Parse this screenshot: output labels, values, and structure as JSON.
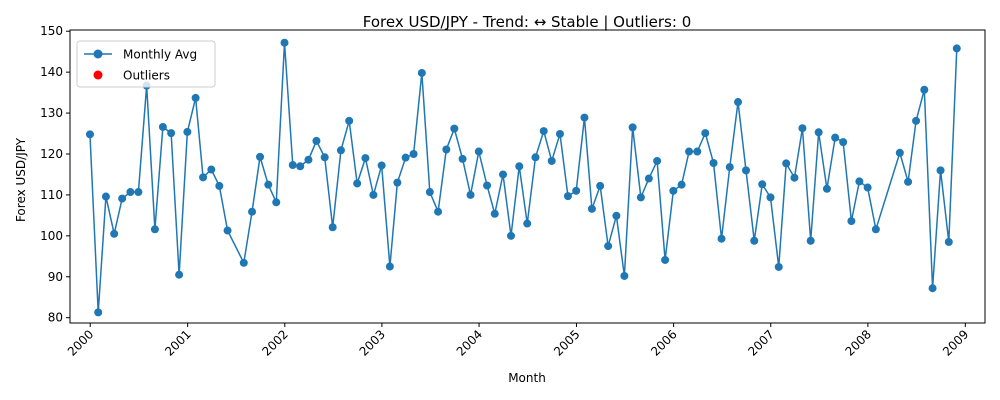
{
  "chart_data": {
    "type": "line",
    "title": "Forex USD/JPY - Trend: ↔ Stable | Outliers: 0",
    "xlabel": "Month",
    "ylabel": "Forex USD/JPY",
    "ylim": [
      78.7,
      150.3
    ],
    "xlim": [
      "1999-10-17",
      "2009-03-16"
    ],
    "yticks": [
      80,
      90,
      100,
      110,
      120,
      130,
      140,
      150
    ],
    "xticks": [
      {
        "label": "2000",
        "date": "2000-01-01"
      },
      {
        "label": "2001",
        "date": "2001-01-01"
      },
      {
        "label": "2002",
        "date": "2002-01-01"
      },
      {
        "label": "2003",
        "date": "2003-01-01"
      },
      {
        "label": "2004",
        "date": "2004-01-01"
      },
      {
        "label": "2005",
        "date": "2005-01-01"
      },
      {
        "label": "2006",
        "date": "2006-01-01"
      },
      {
        "label": "2007",
        "date": "2007-01-01"
      },
      {
        "label": "2008",
        "date": "2008-01-01"
      },
      {
        "label": "2009",
        "date": "2009-01-01"
      }
    ],
    "grid": false,
    "legend_placement": "top-left",
    "series": [
      {
        "name": "Monthly Avg",
        "color": "#1f77b4",
        "style": "line-marker",
        "points": [
          [
            "1999-12-31",
            124.8
          ],
          [
            "2000-01-31",
            81.3
          ],
          [
            "2000-02-29",
            109.6
          ],
          [
            "2000-03-31",
            100.5
          ],
          [
            "2000-04-30",
            109.1
          ],
          [
            "2000-05-31",
            110.7
          ],
          [
            "2000-06-30",
            110.7
          ],
          [
            "2000-07-31",
            136.7
          ],
          [
            "2000-08-31",
            101.6
          ],
          [
            "2000-09-30",
            126.6
          ],
          [
            "2000-10-31",
            125.1
          ],
          [
            "2000-11-30",
            90.5
          ],
          [
            "2000-12-31",
            125.4
          ],
          [
            "2001-01-31",
            133.7
          ],
          [
            "2001-02-28",
            114.3
          ],
          [
            "2001-03-31",
            116.2
          ],
          [
            "2001-04-30",
            112.2
          ],
          [
            "2001-05-31",
            101.3
          ],
          [
            "2001-07-31",
            93.4
          ],
          [
            "2001-08-31",
            105.9
          ],
          [
            "2001-09-30",
            119.3
          ],
          [
            "2001-10-31",
            112.5
          ],
          [
            "2001-11-30",
            108.2
          ],
          [
            "2001-12-31",
            147.2
          ],
          [
            "2002-01-31",
            117.3
          ],
          [
            "2002-02-28",
            117.0
          ],
          [
            "2002-03-31",
            118.6
          ],
          [
            "2002-04-30",
            123.2
          ],
          [
            "2002-05-31",
            119.2
          ],
          [
            "2002-06-30",
            102.1
          ],
          [
            "2002-07-31",
            120.9
          ],
          [
            "2002-08-31",
            128.1
          ],
          [
            "2002-09-30",
            112.8
          ],
          [
            "2002-10-31",
            119.0
          ],
          [
            "2002-11-30",
            110.0
          ],
          [
            "2002-12-31",
            117.2
          ],
          [
            "2003-01-31",
            92.5
          ],
          [
            "2003-02-28",
            113.0
          ],
          [
            "2003-03-31",
            119.1
          ],
          [
            "2003-04-30",
            120.0
          ],
          [
            "2003-05-31",
            139.8
          ],
          [
            "2003-06-30",
            110.7
          ],
          [
            "2003-07-31",
            105.9
          ],
          [
            "2003-08-31",
            121.1
          ],
          [
            "2003-09-30",
            126.2
          ],
          [
            "2003-10-31",
            118.8
          ],
          [
            "2003-11-30",
            110.0
          ],
          [
            "2003-12-31",
            120.6
          ],
          [
            "2004-01-31",
            112.3
          ],
          [
            "2004-02-29",
            105.4
          ],
          [
            "2004-03-31",
            115.0
          ],
          [
            "2004-04-30",
            100.0
          ],
          [
            "2004-05-31",
            117.0
          ],
          [
            "2004-06-30",
            103.0
          ],
          [
            "2004-07-31",
            119.2
          ],
          [
            "2004-08-31",
            125.6
          ],
          [
            "2004-09-30",
            118.3
          ],
          [
            "2004-10-31",
            124.9
          ],
          [
            "2004-11-30",
            109.7
          ],
          [
            "2004-12-31",
            111.0
          ],
          [
            "2005-01-31",
            128.9
          ],
          [
            "2005-02-28",
            106.6
          ],
          [
            "2005-03-31",
            112.2
          ],
          [
            "2005-04-30",
            97.5
          ],
          [
            "2005-05-31",
            104.9
          ],
          [
            "2005-06-30",
            90.2
          ],
          [
            "2005-07-31",
            126.5
          ],
          [
            "2005-08-31",
            109.4
          ],
          [
            "2005-09-30",
            114.0
          ],
          [
            "2005-10-31",
            118.3
          ],
          [
            "2005-11-30",
            94.1
          ],
          [
            "2005-12-31",
            111.0
          ],
          [
            "2006-01-31",
            112.5
          ],
          [
            "2006-02-28",
            120.6
          ],
          [
            "2006-03-31",
            120.6
          ],
          [
            "2006-04-30",
            125.1
          ],
          [
            "2006-05-31",
            117.8
          ],
          [
            "2006-06-30",
            99.3
          ],
          [
            "2006-07-31",
            116.8
          ],
          [
            "2006-08-31",
            132.7
          ],
          [
            "2006-09-30",
            116.0
          ],
          [
            "2006-10-31",
            98.8
          ],
          [
            "2006-11-30",
            112.6
          ],
          [
            "2006-12-31",
            109.4
          ],
          [
            "2007-01-31",
            92.4
          ],
          [
            "2007-02-28",
            117.7
          ],
          [
            "2007-03-31",
            114.2
          ],
          [
            "2007-04-30",
            126.3
          ],
          [
            "2007-05-31",
            98.8
          ],
          [
            "2007-06-30",
            125.3
          ],
          [
            "2007-07-31",
            111.5
          ],
          [
            "2007-08-31",
            124.0
          ],
          [
            "2007-09-30",
            122.9
          ],
          [
            "2007-10-31",
            103.6
          ],
          [
            "2007-11-30",
            113.3
          ],
          [
            "2007-12-31",
            111.8
          ],
          [
            "2008-01-31",
            101.6
          ],
          [
            "2008-04-30",
            120.3
          ],
          [
            "2008-05-31",
            113.2
          ],
          [
            "2008-06-30",
            128.1
          ],
          [
            "2008-07-31",
            135.7
          ],
          [
            "2008-08-31",
            87.2
          ],
          [
            "2008-09-30",
            116.0
          ],
          [
            "2008-10-31",
            98.5
          ],
          [
            "2008-11-30",
            145.8
          ]
        ]
      },
      {
        "name": "Outliers",
        "color": "#ff0000",
        "style": "scatter",
        "points": []
      }
    ]
  }
}
